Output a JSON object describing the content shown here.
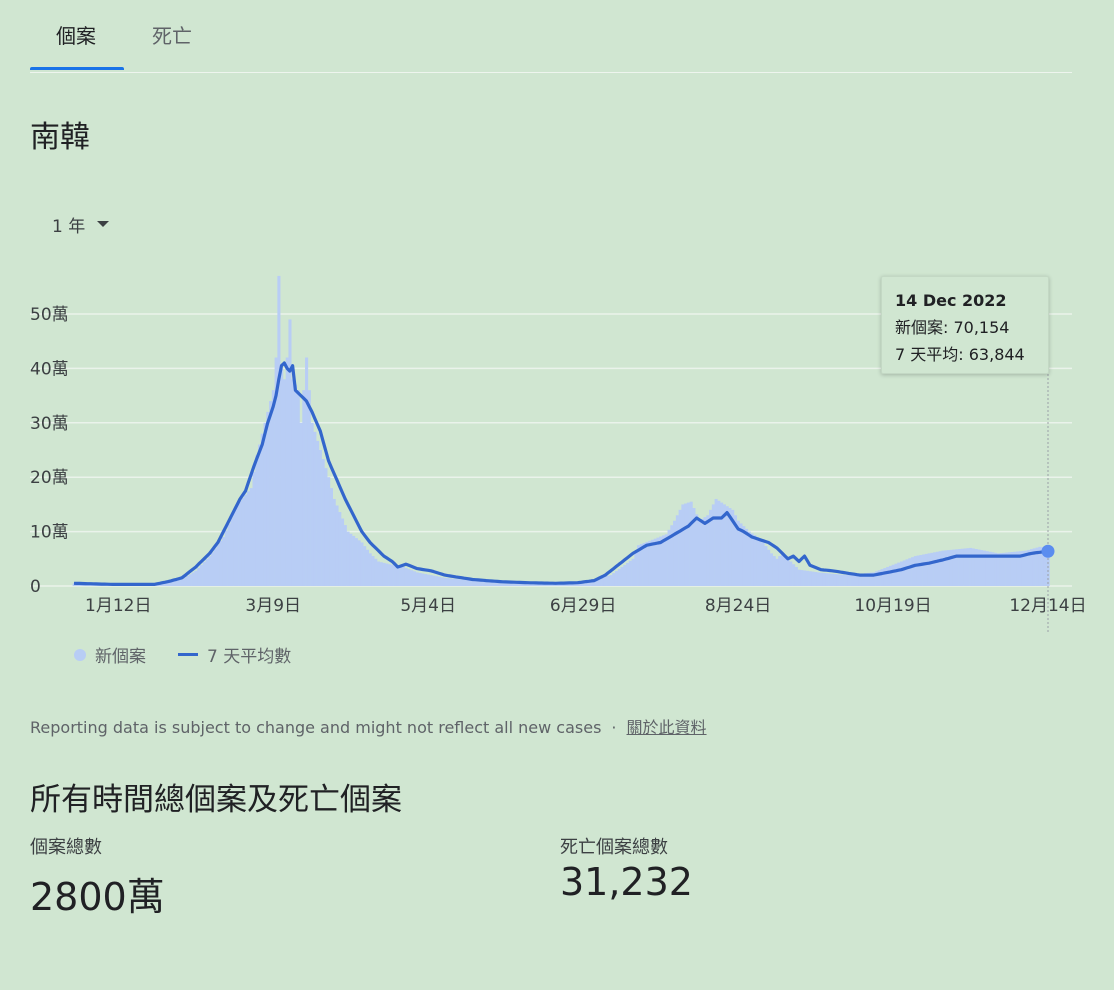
{
  "tabs": [
    {
      "label": "個案",
      "active": true
    },
    {
      "label": "死亡",
      "active": false
    }
  ],
  "region": "南韓",
  "range_selector": {
    "value": "1 年"
  },
  "tooltip": {
    "date": "14 Dec 2022",
    "new_cases": "新個案: 70,154",
    "avg": "7 天平均: 63,844"
  },
  "legend": {
    "bars": "新個案",
    "line": "7 天平均數"
  },
  "footnote": {
    "text": "Reporting data is subject to change and might not reflect all new cases",
    "separator": "·",
    "link": "關於此資料"
  },
  "totals": {
    "title": "所有時間總個案及死亡個案",
    "cases_label": "個案總數",
    "cases_value": "2800萬",
    "deaths_label": "死亡個案總數",
    "deaths_value": "31,232"
  },
  "colors": {
    "bars": "#b8cdf5",
    "line": "#3366cc",
    "grid": "#eaf3eb",
    "axis_text": "#3c4043"
  },
  "chart_data": {
    "type": "bar",
    "y_ticks": [
      "0",
      "10萬",
      "20萬",
      "30萬",
      "40萬",
      "50萬"
    ],
    "y_tick_values": [
      0,
      100000,
      200000,
      300000,
      400000,
      500000
    ],
    "ylim": [
      0,
      500000
    ],
    "x_ticks": [
      "1月12日",
      "3月9日",
      "5月4日",
      "6月29日",
      "8月24日",
      "10月19日",
      "12月14日"
    ],
    "x_tick_days": [
      12,
      68,
      124,
      180,
      236,
      292,
      348
    ],
    "x_range": [
      -4,
      348
    ],
    "series": [
      {
        "name": "新個案",
        "kind": "bar",
        "anchors": [
          [
            -4,
            5000
          ],
          [
            10,
            3000
          ],
          [
            25,
            3500
          ],
          [
            35,
            12000
          ],
          [
            40,
            28000
          ],
          [
            45,
            55000
          ],
          [
            50,
            90000
          ],
          [
            55,
            150000
          ],
          [
            60,
            180000
          ],
          [
            62,
            240000
          ],
          [
            65,
            300000
          ],
          [
            67,
            340000
          ],
          [
            68,
            360000
          ],
          [
            69,
            420000
          ],
          [
            70,
            570000
          ],
          [
            71,
            400000
          ],
          [
            72,
            380000
          ],
          [
            73,
            420000
          ],
          [
            74,
            490000
          ],
          [
            75,
            380000
          ],
          [
            77,
            360000
          ],
          [
            78,
            300000
          ],
          [
            80,
            420000
          ],
          [
            82,
            300000
          ],
          [
            85,
            250000
          ],
          [
            88,
            200000
          ],
          [
            90,
            160000
          ],
          [
            95,
            100000
          ],
          [
            100,
            80000
          ],
          [
            103,
            60000
          ],
          [
            106,
            45000
          ],
          [
            110,
            40000
          ],
          [
            115,
            35000
          ],
          [
            120,
            25000
          ],
          [
            130,
            15000
          ],
          [
            140,
            10000
          ],
          [
            150,
            8000
          ],
          [
            160,
            6000
          ],
          [
            170,
            5000
          ],
          [
            180,
            7000
          ],
          [
            190,
            20000
          ],
          [
            198,
            50000
          ],
          [
            200,
            75000
          ],
          [
            205,
            85000
          ],
          [
            210,
            95000
          ],
          [
            213,
            120000
          ],
          [
            216,
            150000
          ],
          [
            219,
            155000
          ],
          [
            222,
            120000
          ],
          [
            225,
            130000
          ],
          [
            228,
            160000
          ],
          [
            231,
            150000
          ],
          [
            234,
            140000
          ],
          [
            236,
            120000
          ],
          [
            240,
            100000
          ],
          [
            243,
            90000
          ],
          [
            245,
            80000
          ],
          [
            248,
            60000
          ],
          [
            250,
            50000
          ],
          [
            252,
            60000
          ],
          [
            255,
            45000
          ],
          [
            258,
            30000
          ],
          [
            265,
            25000
          ],
          [
            275,
            20000
          ],
          [
            285,
            25000
          ],
          [
            290,
            35000
          ],
          [
            295,
            45000
          ],
          [
            300,
            55000
          ],
          [
            305,
            60000
          ],
          [
            310,
            65000
          ],
          [
            320,
            70000
          ],
          [
            330,
            60000
          ],
          [
            340,
            65000
          ],
          [
            345,
            72000
          ],
          [
            348,
            70154
          ]
        ]
      },
      {
        "name": "7 天平均數",
        "kind": "line",
        "anchors": [
          [
            -4,
            5000
          ],
          [
            10,
            3000
          ],
          [
            25,
            3000
          ],
          [
            30,
            8000
          ],
          [
            35,
            15000
          ],
          [
            40,
            35000
          ],
          [
            45,
            60000
          ],
          [
            48,
            80000
          ],
          [
            52,
            120000
          ],
          [
            56,
            160000
          ],
          [
            58,
            175000
          ],
          [
            61,
            220000
          ],
          [
            64,
            260000
          ],
          [
            66,
            300000
          ],
          [
            68,
            330000
          ],
          [
            69,
            350000
          ],
          [
            70,
            380000
          ],
          [
            71,
            405000
          ],
          [
            72,
            410000
          ],
          [
            73,
            400000
          ],
          [
            74,
            395000
          ],
          [
            75,
            405000
          ],
          [
            76,
            360000
          ],
          [
            78,
            350000
          ],
          [
            80,
            340000
          ],
          [
            82,
            320000
          ],
          [
            85,
            285000
          ],
          [
            88,
            230000
          ],
          [
            91,
            195000
          ],
          [
            94,
            160000
          ],
          [
            97,
            130000
          ],
          [
            100,
            100000
          ],
          [
            103,
            80000
          ],
          [
            106,
            65000
          ],
          [
            108,
            55000
          ],
          [
            111,
            45000
          ],
          [
            113,
            35000
          ],
          [
            116,
            40000
          ],
          [
            120,
            32000
          ],
          [
            125,
            28000
          ],
          [
            130,
            20000
          ],
          [
            140,
            12000
          ],
          [
            150,
            8000
          ],
          [
            160,
            6000
          ],
          [
            170,
            5000
          ],
          [
            178,
            6000
          ],
          [
            184,
            10000
          ],
          [
            188,
            20000
          ],
          [
            193,
            40000
          ],
          [
            198,
            60000
          ],
          [
            203,
            75000
          ],
          [
            208,
            80000
          ],
          [
            213,
            95000
          ],
          [
            218,
            110000
          ],
          [
            221,
            125000
          ],
          [
            224,
            115000
          ],
          [
            227,
            125000
          ],
          [
            230,
            125000
          ],
          [
            232,
            135000
          ],
          [
            234,
            120000
          ],
          [
            236,
            105000
          ],
          [
            238,
            100000
          ],
          [
            241,
            90000
          ],
          [
            244,
            85000
          ],
          [
            247,
            80000
          ],
          [
            250,
            70000
          ],
          [
            252,
            60000
          ],
          [
            254,
            50000
          ],
          [
            256,
            55000
          ],
          [
            258,
            45000
          ],
          [
            260,
            55000
          ],
          [
            262,
            38000
          ],
          [
            266,
            30000
          ],
          [
            270,
            28000
          ],
          [
            275,
            24000
          ],
          [
            280,
            20000
          ],
          [
            285,
            20000
          ],
          [
            290,
            25000
          ],
          [
            295,
            30000
          ],
          [
            300,
            38000
          ],
          [
            305,
            42000
          ],
          [
            310,
            48000
          ],
          [
            315,
            55000
          ],
          [
            320,
            55000
          ],
          [
            330,
            55000
          ],
          [
            338,
            55000
          ],
          [
            342,
            60000
          ],
          [
            345,
            62000
          ],
          [
            348,
            63844
          ]
        ]
      }
    ],
    "highlight": {
      "day": 348,
      "value": 63844
    }
  }
}
